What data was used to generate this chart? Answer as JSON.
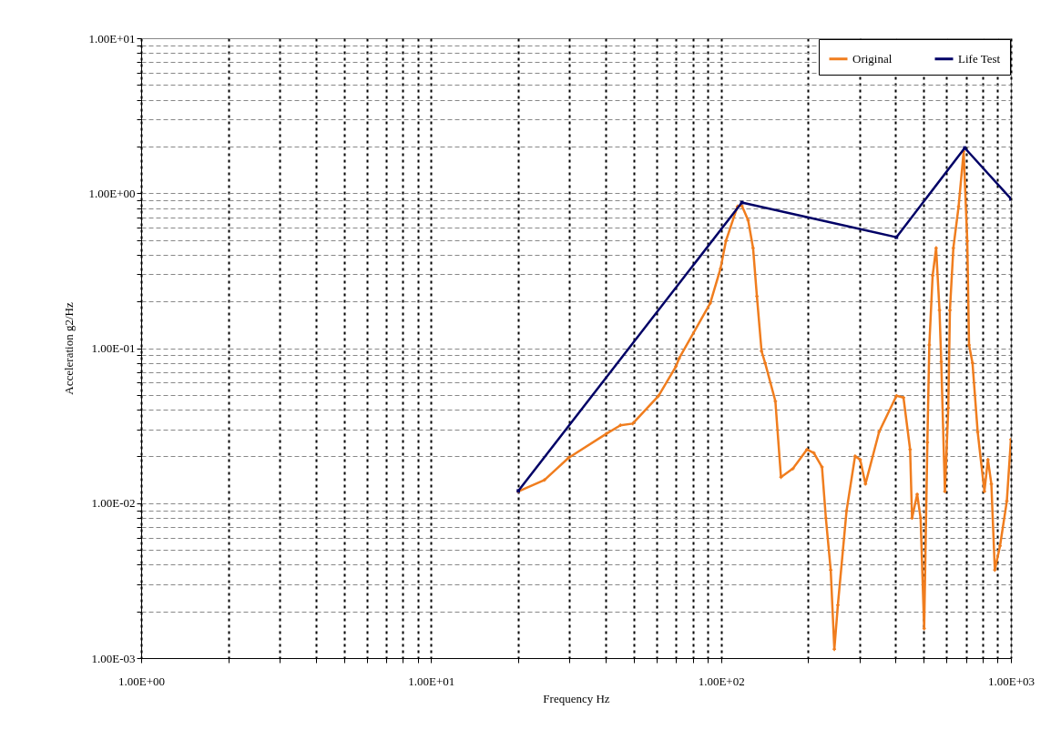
{
  "chart_data": {
    "type": "line",
    "xlabel": "Frequency Hz",
    "ylabel": "Acceleration g2/Hz",
    "log": "xy",
    "grid": true,
    "legend": "top right",
    "xlim": [
      1,
      1000
    ],
    "ylim": [
      0.001,
      10
    ],
    "xticks": [
      {
        "value": 1,
        "label": "1.00E+00"
      },
      {
        "value": 2,
        "label": null
      },
      {
        "value": 3,
        "label": null
      },
      {
        "value": 4,
        "label": null
      },
      {
        "value": 5,
        "label": null
      },
      {
        "value": 6,
        "label": null
      },
      {
        "value": 7,
        "label": null
      },
      {
        "value": 8,
        "label": null
      },
      {
        "value": 9,
        "label": null
      },
      {
        "value": 10,
        "label": "1.00E+01"
      },
      {
        "value": 20,
        "label": null
      },
      {
        "value": 30,
        "label": null
      },
      {
        "value": 40,
        "label": null
      },
      {
        "value": 50,
        "label": null
      },
      {
        "value": 60,
        "label": null
      },
      {
        "value": 70,
        "label": null
      },
      {
        "value": 80,
        "label": null
      },
      {
        "value": 90,
        "label": null
      },
      {
        "value": 100,
        "label": "1.00E+02"
      },
      {
        "value": 200,
        "label": null
      },
      {
        "value": 300,
        "label": null
      },
      {
        "value": 400,
        "label": null
      },
      {
        "value": 500,
        "label": null
      },
      {
        "value": 600,
        "label": null
      },
      {
        "value": 700,
        "label": null
      },
      {
        "value": 800,
        "label": null
      },
      {
        "value": 900,
        "label": null
      },
      {
        "value": 1000,
        "label": "1.00E+03"
      }
    ],
    "yticks": [
      {
        "value": 0.001,
        "label": "1.00E-03"
      },
      {
        "value": 0.002,
        "label": null
      },
      {
        "value": 0.003,
        "label": null
      },
      {
        "value": 0.004,
        "label": null
      },
      {
        "value": 0.005,
        "label": null
      },
      {
        "value": 0.006,
        "label": null
      },
      {
        "value": 0.007,
        "label": null
      },
      {
        "value": 0.008,
        "label": null
      },
      {
        "value": 0.009,
        "label": null
      },
      {
        "value": 0.01,
        "label": "1.00E-02"
      },
      {
        "value": 0.02,
        "label": null
      },
      {
        "value": 0.03,
        "label": null
      },
      {
        "value": 0.04,
        "label": null
      },
      {
        "value": 0.05,
        "label": null
      },
      {
        "value": 0.06,
        "label": null
      },
      {
        "value": 0.07,
        "label": null
      },
      {
        "value": 0.08,
        "label": null
      },
      {
        "value": 0.09,
        "label": null
      },
      {
        "value": 0.1,
        "label": "1.00E-01"
      },
      {
        "value": 0.2,
        "label": null
      },
      {
        "value": 0.3,
        "label": null
      },
      {
        "value": 0.4,
        "label": null
      },
      {
        "value": 0.5,
        "label": null
      },
      {
        "value": 0.6,
        "label": null
      },
      {
        "value": 0.7,
        "label": null
      },
      {
        "value": 0.8,
        "label": null
      },
      {
        "value": 0.9,
        "label": null
      },
      {
        "value": 1,
        "label": "1.00E+00"
      },
      {
        "value": 2,
        "label": null
      },
      {
        "value": 3,
        "label": null
      },
      {
        "value": 4,
        "label": null
      },
      {
        "value": 5,
        "label": null
      },
      {
        "value": 6,
        "label": null
      },
      {
        "value": 7,
        "label": null
      },
      {
        "value": 8,
        "label": null
      },
      {
        "value": 9,
        "label": null
      },
      {
        "value": 10,
        "label": "1.00E+01"
      }
    ],
    "series": [
      {
        "name": "Original",
        "color": "#f07d1e",
        "marker": "cross",
        "x": [
          20,
          24.6,
          29.8,
          40.3,
          45,
          49.6,
          60.9,
          69.9,
          71.7,
          91.8,
          99.6,
          104,
          114,
          118,
          124,
          129,
          133,
          138,
          142,
          154,
          161,
          177,
          198,
          209,
          223,
          230,
          239,
          246,
          253,
          271,
          290,
          302,
          315,
          351,
          403,
          426,
          449,
          456,
          475,
          488,
          502,
          515,
          523,
          537,
          552,
          567,
          575,
          592,
          608,
          616,
          633,
          660,
          687,
          707,
          717,
          737,
          768,
          810,
          833,
          856,
          880,
          917,
          968,
          1000
        ],
        "values": [
          0.0119,
          0.0141,
          0.0196,
          0.0281,
          0.0318,
          0.0326,
          0.0493,
          0.0762,
          0.0859,
          0.195,
          0.326,
          0.492,
          0.823,
          0.83,
          0.672,
          0.443,
          0.216,
          0.0957,
          0.0802,
          0.0455,
          0.0147,
          0.0167,
          0.0222,
          0.0211,
          0.0171,
          0.008,
          0.0037,
          0.00114,
          0.0022,
          0.0089,
          0.0201,
          0.0191,
          0.0133,
          0.0288,
          0.0493,
          0.048,
          0.0222,
          0.008,
          0.0114,
          0.008,
          0.00155,
          0.0247,
          0.105,
          0.294,
          0.443,
          0.176,
          0.0816,
          0.0119,
          0.0411,
          0.176,
          0.443,
          0.82,
          1.86,
          0.492,
          0.105,
          0.0802,
          0.0288,
          0.0119,
          0.0191,
          0.0133,
          0.0037,
          0.0053,
          0.0103,
          0.0258
        ]
      },
      {
        "name": "Life Test",
        "color": "#000066",
        "marker": "square",
        "x": [
          20,
          118,
          403,
          693,
          1000
        ],
        "values": [
          0.012,
          0.87,
          0.52,
          1.96,
          0.92
        ]
      }
    ]
  }
}
